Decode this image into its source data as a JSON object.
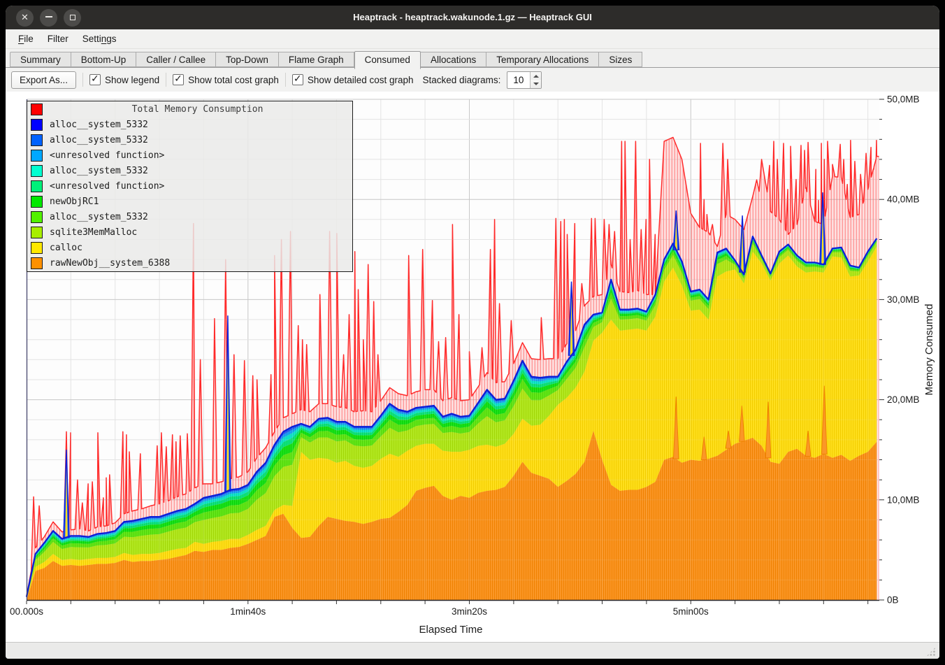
{
  "window": {
    "title": "Heaptrack - heaptrack.wakunode.1.gz — Heaptrack GUI",
    "controls": [
      {
        "name": "close",
        "glyph": "✕"
      },
      {
        "name": "minimize",
        "glyph": ""
      },
      {
        "name": "maximize",
        "glyph": ""
      }
    ]
  },
  "menu": {
    "items": [
      {
        "label": "File",
        "mnemonic_index": 0
      },
      {
        "label": "Filter",
        "mnemonic_index": -1
      },
      {
        "label": "Settings",
        "mnemonic_index": 5
      }
    ]
  },
  "tabs": {
    "items": [
      "Summary",
      "Bottom-Up",
      "Caller / Callee",
      "Top-Down",
      "Flame Graph",
      "Consumed",
      "Allocations",
      "Temporary Allocations",
      "Sizes"
    ],
    "active": "Consumed"
  },
  "toolbar": {
    "export_label": "Export As...",
    "checkboxes": [
      {
        "label": "Show legend",
        "checked": true
      },
      {
        "label": "Show total cost graph",
        "checked": true
      },
      {
        "label": "Show detailed cost graph",
        "checked": true
      }
    ],
    "stacked_label": "Stacked diagrams:",
    "stacked_value": "10"
  },
  "legend": {
    "title": "Total Memory Consumption",
    "title_color": "#ff0000",
    "entries": [
      {
        "name": "alloc__system_5332",
        "color": "#0000ff"
      },
      {
        "name": "alloc__system_5332",
        "color": "#0062ff"
      },
      {
        "name": "<unresolved function>",
        "color": "#00a8ff"
      },
      {
        "name": "alloc__system_5332",
        "color": "#00ffd0"
      },
      {
        "name": "<unresolved function>",
        "color": "#00f07a"
      },
      {
        "name": "newObjRC1",
        "color": "#00e800"
      },
      {
        "name": "alloc__system_5332",
        "color": "#52f200"
      },
      {
        "name": "sqlite3MemMalloc",
        "color": "#a8ee00"
      },
      {
        "name": "calloc",
        "color": "#ffe800"
      },
      {
        "name": "rawNewObj__system_6388",
        "color": "#ff9100"
      }
    ]
  },
  "chart_data": {
    "type": "area",
    "stacked": true,
    "title": "",
    "xlabel": "Elapsed Time",
    "ylabel": "Memory Consumed",
    "x_unit": "seconds",
    "y_unit": "MB",
    "ylim": [
      0,
      50
    ],
    "xlim_s": [
      0,
      385
    ],
    "grid": {
      "minor_s": 20,
      "major_s": 100,
      "minor_mb": 2,
      "major_mb": 10,
      "on": true
    },
    "x_tick_labels": [
      {
        "t": 0,
        "label": "00.000s"
      },
      {
        "t": 100,
        "label": "1min40s"
      },
      {
        "t": 200,
        "label": "3min20s"
      },
      {
        "t": 300,
        "label": "5min00s"
      }
    ],
    "y_tick_labels": [
      {
        "mb": 0,
        "label": "0B"
      },
      {
        "mb": 10,
        "label": "10,0MB"
      },
      {
        "mb": 20,
        "label": "20,0MB"
      },
      {
        "mb": 30,
        "label": "30,0MB"
      },
      {
        "mb": 40,
        "label": "40,0MB"
      },
      {
        "mb": 50,
        "label": "50,0MB"
      }
    ],
    "t_grid": {
      "step_s": 4,
      "count": 97
    },
    "cumulative_mb": {
      "rawNewObj__system_6388": [
        0.0,
        2.9,
        3.2,
        3.9,
        3.4,
        3.5,
        3.4,
        3.5,
        3.6,
        3.6,
        3.7,
        4.0,
        3.8,
        3.9,
        3.9,
        4.0,
        4.1,
        4.3,
        4.5,
        4.9,
        4.8,
        5.0,
        5.0,
        5.2,
        5.3,
        5.6,
        6.0,
        6.4,
        8.3,
        8.6,
        7.2,
        6.2,
        6.3,
        7.4,
        8.3,
        8.1,
        7.9,
        7.8,
        7.6,
        7.8,
        8.1,
        8.2,
        8.8,
        9.5,
        10.9,
        11.2,
        11.4,
        10.4,
        10.0,
        10.4,
        10.2,
        10.7,
        10.9,
        11.0,
        11.3,
        12.4,
        13.8,
        12.7,
        12.4,
        12.1,
        11.3,
        11.9,
        12.6,
        13.8,
        16.9,
        14.0,
        11.5,
        10.9,
        11.0,
        11.0,
        11.3,
        11.8,
        14.0,
        14.3,
        13.7,
        14.0,
        13.9,
        14.1,
        14.4,
        15.0,
        15.6,
        15.9,
        16.2,
        15.4,
        13.8,
        13.6,
        14.8,
        15.1,
        14.4,
        14.2,
        14.6,
        14.2,
        14.5,
        13.9,
        14.4,
        14.8,
        15.8
      ],
      "calloc": [
        0.2,
        3.3,
        3.8,
        4.6,
        4.0,
        4.1,
        4.0,
        4.1,
        4.2,
        4.2,
        4.3,
        4.7,
        4.5,
        4.6,
        4.6,
        4.7,
        4.9,
        5.1,
        5.2,
        5.8,
        5.6,
        5.8,
        5.9,
        6.1,
        6.1,
        6.5,
        7.0,
        7.4,
        9.0,
        9.5,
        9.4,
        14.8,
        14.0,
        14.2,
        14.1,
        13.7,
        13.9,
        13.4,
        13.2,
        13.4,
        14.1,
        14.6,
        14.3,
        14.9,
        15.4,
        15.6,
        15.6,
        14.9,
        14.8,
        14.8,
        15.0,
        15.4,
        15.5,
        15.3,
        15.6,
        16.6,
        18.1,
        17.4,
        17.5,
        18.4,
        19.5,
        20.2,
        21.2,
        22.8,
        25.9,
        26.7,
        28.0,
        26.9,
        27.0,
        27.1,
        26.9,
        28.3,
        31.8,
        33.2,
        31.4,
        28.9,
        29.0,
        28.0,
        32.3,
        32.8,
        33.0,
        31.6,
        34.8,
        33.6,
        31.9,
        33.6,
        34.4,
        33.3,
        32.7,
        32.8,
        32.7,
        34.3,
        34.2,
        32.3,
        32.4,
        33.8,
        35.3
      ],
      "stack_top": [
        0.3,
        4.6,
        5.7,
        6.9,
        6.1,
        6.4,
        6.4,
        6.3,
        6.6,
        6.7,
        6.9,
        7.8,
        7.9,
        8.1,
        8.3,
        8.3,
        8.6,
        8.9,
        9.1,
        9.6,
        10.2,
        10.4,
        10.6,
        11.0,
        11.1,
        11.5,
        12.8,
        13.7,
        15.5,
        16.8,
        17.3,
        17.6,
        17.3,
        18.1,
        18.2,
        17.8,
        17.8,
        17.3,
        17.3,
        17.3,
        18.4,
        19.6,
        19.0,
        18.8,
        19.2,
        19.3,
        19.4,
        18.3,
        18.6,
        18.3,
        18.4,
        19.7,
        21.0,
        20.0,
        20.1,
        21.9,
        23.9,
        22.3,
        22.2,
        22.3,
        22.3,
        23.8,
        25.0,
        27.5,
        28.5,
        28.7,
        32.0,
        29.0,
        29.0,
        29.1,
        28.8,
        30.5,
        34.0,
        35.6,
        33.8,
        30.8,
        31.0,
        30.0,
        34.7,
        35.1,
        33.9,
        32.5,
        36.3,
        34.4,
        32.6,
        34.8,
        35.5,
        34.4,
        33.7,
        33.7,
        33.5,
        35.1,
        35.2,
        33.4,
        33.2,
        34.8,
        36.1
      ]
    },
    "gap_layers": [
      {
        "name": "sqlite3MemMalloc",
        "frac": 0.52,
        "color": "#b4ea24",
        "stripe": "#a2d607"
      },
      {
        "name": "alloc__system_5332",
        "frac": 0.16,
        "color": "#63e81a",
        "stripe": "#52d40a"
      },
      {
        "name": "newObjRC1",
        "frac": 0.11,
        "color": "#1ce41c",
        "stripe": "#0ad00a"
      },
      {
        "name": "<unresolved function>",
        "frac": 0.07,
        "color": "#12e67e",
        "stripe": "#04d26c"
      },
      {
        "name": "alloc__system_5332",
        "frac": 0.06,
        "color": "#14e6cc",
        "stripe": "#06d2b8"
      },
      {
        "name": "<unresolved function>",
        "frac": 0.04,
        "color": "#1fa9f5",
        "stripe": "#0d93dd"
      },
      {
        "name": "alloc__system_5332",
        "frac": 0.04,
        "color": "#2e66f3",
        "stripe": "#1b4fdd"
      }
    ],
    "base_colors": {
      "rawNewObj__system_6388": {
        "color": "#fb9727",
        "stripe": "#ef8202"
      },
      "calloc": {
        "color": "#ffe01e",
        "stripe": "#f2cd00"
      },
      "stack_cap_stroke": "#0b1fd8",
      "axis": "#26262b",
      "grid_minor": "#e4e4e4",
      "grid_major": "#c8c8c8",
      "text": "#1b1b1b"
    },
    "total": {
      "name": "Total Memory Consumption",
      "color": "#ff2a2a",
      "fill": "rgba(255,110,110,0.18)",
      "hatch": "rgba(255,60,60,0.45)",
      "base_mb": [
        0.4,
        5.2,
        6.3,
        7.8,
        6.8,
        7.0,
        7.1,
        6.9,
        7.3,
        7.4,
        7.7,
        8.6,
        8.9,
        9.1,
        9.4,
        9.6,
        9.9,
        10.3,
        10.6,
        11.2,
        11.6,
        11.6,
        11.8,
        12.1,
        12.3,
        12.8,
        14.2,
        15.2,
        16.8,
        18.2,
        18.6,
        19.0,
        18.8,
        19.6,
        19.6,
        19.3,
        19.2,
        18.8,
        18.9,
        18.8,
        19.9,
        21.2,
        20.6,
        20.4,
        20.8,
        21.0,
        21.0,
        19.9,
        20.2,
        19.9,
        20.0,
        21.3,
        22.7,
        21.7,
        21.8,
        23.6,
        25.7,
        24.1,
        24.0,
        24.1,
        24.1,
        25.6,
        26.9,
        29.4,
        30.3,
        30.5,
        33.5,
        30.8,
        30.7,
        30.9,
        30.5,
        30.5,
        45.8,
        46.2,
        44.0,
        38.6,
        37.2,
        36.7,
        35.3,
        38.5,
        38.0,
        37.0,
        40.3,
        44.0,
        38.8,
        38.0,
        36.5,
        37.5,
        41.2,
        37.8,
        37.5,
        42.3,
        42.2,
        38.2,
        38.5,
        41.0,
        44.3
      ],
      "spikes_t_mb": [
        [
          3.2,
          10.3
        ],
        [
          5.7,
          9.4
        ],
        [
          18,
          16.8
        ],
        [
          19.9,
          16.7
        ],
        [
          23,
          12
        ],
        [
          25.2,
          9.7
        ],
        [
          27.8,
          11.6
        ],
        [
          29.7,
          11.8
        ],
        [
          32.2,
          16.7
        ],
        [
          34.7,
          10.2
        ],
        [
          36,
          12.2
        ],
        [
          37.5,
          12.5
        ],
        [
          43.5,
          16.8
        ],
        [
          45.1,
          16.5
        ],
        [
          46.4,
          14.8
        ],
        [
          51.4,
          14.6
        ],
        [
          59,
          15.4
        ],
        [
          60.9,
          16.7
        ],
        [
          63.1,
          15.3
        ],
        [
          65.9,
          16.5
        ],
        [
          67.5,
          15.8
        ],
        [
          69.4,
          16.4
        ],
        [
          72.6,
          16.6
        ],
        [
          75.4,
          37.6
        ],
        [
          78.5,
          24
        ],
        [
          84.9,
          28.1
        ],
        [
          89.9,
          34
        ],
        [
          93.7,
          24.5
        ],
        [
          98.4,
          23.9
        ],
        [
          102.2,
          22.4
        ],
        [
          104.1,
          22
        ],
        [
          110.4,
          22.5
        ],
        [
          112,
          34.4
        ],
        [
          115.1,
          36
        ],
        [
          119.2,
          36.8
        ],
        [
          122.7,
          27.4
        ],
        [
          124.6,
          26
        ],
        [
          126.5,
          25.5
        ],
        [
          132.5,
          30.5
        ],
        [
          136.9,
          36.8
        ],
        [
          140.1,
          36.6
        ],
        [
          143.2,
          24.5
        ],
        [
          145.7,
          28.5
        ],
        [
          148.3,
          34.8
        ],
        [
          149.8,
          31
        ],
        [
          152.1,
          26
        ],
        [
          154.3,
          33.5
        ],
        [
          156.8,
          29.8
        ],
        [
          158.7,
          24.5
        ],
        [
          172.6,
          34.4
        ],
        [
          178.9,
          35
        ],
        [
          183.3,
          29.9
        ],
        [
          186.1,
          25.8
        ],
        [
          189.3,
          26.2
        ],
        [
          192.4,
          37.5
        ],
        [
          195.3,
          28.5
        ],
        [
          200,
          24.8
        ],
        [
          205.7,
          25.2
        ],
        [
          209.5,
          35
        ],
        [
          211.4,
          38
        ],
        [
          213.6,
          29.6
        ],
        [
          218.9,
          27.9
        ],
        [
          232.5,
          28.2
        ],
        [
          239.1,
          38.1
        ],
        [
          241.3,
          37.8
        ],
        [
          242.9,
          38
        ],
        [
          244.2,
          36.5
        ],
        [
          247.6,
          37.6
        ],
        [
          250.8,
          31.6
        ],
        [
          255.2,
          38.1
        ],
        [
          256.8,
          38.1
        ],
        [
          260.9,
          38
        ],
        [
          263.1,
          37.5
        ],
        [
          265.6,
          36.8
        ],
        [
          268.8,
          45.8
        ],
        [
          270.3,
          45.8
        ],
        [
          272.6,
          36
        ],
        [
          275.1,
          45.8
        ],
        [
          277.6,
          37
        ],
        [
          279.8,
          38
        ],
        [
          281.4,
          44
        ],
        [
          283.9,
          36.5
        ],
        [
          304.4,
          45.6
        ],
        [
          306,
          40
        ],
        [
          307.3,
          38.5
        ],
        [
          309.8,
          37.5
        ],
        [
          314.5,
          45.6
        ],
        [
          316.7,
          44
        ],
        [
          330.9,
          40.8
        ],
        [
          335.6,
          43.4
        ],
        [
          337.5,
          45.8
        ],
        [
          339.1,
          44
        ],
        [
          341.9,
          45.6
        ],
        [
          343.8,
          41
        ],
        [
          345.1,
          45.3
        ],
        [
          347.6,
          42
        ],
        [
          349.8,
          45.4
        ],
        [
          351.4,
          44.9
        ],
        [
          353,
          45.7
        ],
        [
          356.5,
          43
        ],
        [
          357.7,
          39.9
        ],
        [
          359,
          45.6
        ],
        [
          360.3,
          44
        ],
        [
          361.8,
          45.8
        ],
        [
          364,
          43.5
        ],
        [
          367.5,
          45.5
        ],
        [
          369.1,
          44
        ],
        [
          370.7,
          41.5
        ],
        [
          372.2,
          45.9
        ],
        [
          374.1,
          43.8
        ],
        [
          376.7,
          42.5
        ],
        [
          379.2,
          44.6
        ],
        [
          381.4,
          45.2
        ],
        [
          382.6,
          43
        ],
        [
          383.9,
          45.9
        ]
      ]
    },
    "stack_spikes_t_mb": [
      [
        18,
        15
      ],
      [
        90.9,
        28.4
      ],
      [
        246.1,
        31.8
      ],
      [
        293.4,
        38.9
      ],
      [
        323.3,
        38.4
      ],
      [
        359.6,
        40.7
      ]
    ],
    "orange_spikes_t_mb": [
      [
        293.4,
        20.3
      ],
      [
        306,
        16.3
      ],
      [
        317,
        16.9
      ],
      [
        323.1,
        19.4
      ],
      [
        335,
        19.8
      ],
      [
        353,
        16.9
      ],
      [
        360.3,
        21.4
      ]
    ]
  }
}
